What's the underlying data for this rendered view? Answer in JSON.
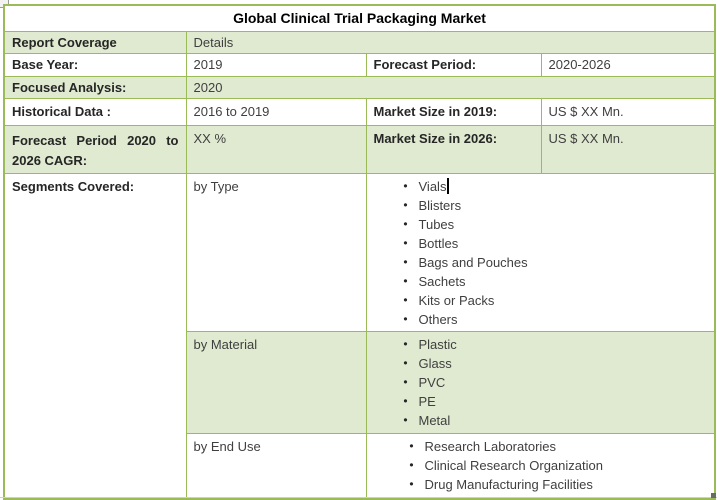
{
  "title": "Global Clinical Trial Packaging Market",
  "coverage_header": {
    "label": "Report Coverage",
    "value": "Details"
  },
  "rows": {
    "base_year": {
      "label": "Base Year:",
      "value": "2019"
    },
    "forecast_period": {
      "label": "Forecast Period:",
      "value": "2020-2026"
    },
    "focused_analysis": {
      "label": "Focused Analysis:",
      "value": "2020"
    },
    "historical_data": {
      "label": "Historical Data :",
      "value": "2016 to 2019"
    },
    "market_size_2019": {
      "label": "Market Size in 2019:",
      "value": "US $ XX Mn."
    },
    "forecast_cagr": {
      "label": "Forecast Period 2020 to 2026 CAGR:",
      "value": "XX %"
    },
    "market_size_2026": {
      "label": "Market Size in 2026:",
      "value": "US $ XX Mn."
    }
  },
  "segments": {
    "label": "Segments Covered:",
    "groups": [
      {
        "name": "by Type",
        "items": [
          "Vials",
          "Blisters",
          "Tubes",
          "Bottles",
          "Bags and Pouches",
          "Sachets",
          "Kits or Packs",
          "Others"
        ]
      },
      {
        "name": "by Material",
        "items": [
          "Plastic",
          "Glass",
          "PVC",
          "PE",
          "Metal"
        ]
      },
      {
        "name": "by End Use",
        "items": [
          "Research Laboratories",
          "Clinical Research Organization",
          "Drug Manufacturing Facilities"
        ]
      }
    ]
  },
  "icons": {
    "bullet": "•"
  },
  "colors": {
    "border": "#9BBB59",
    "fill": "#E0EAD0",
    "label_text": "#262626",
    "value_text": "#3F3F3F"
  }
}
